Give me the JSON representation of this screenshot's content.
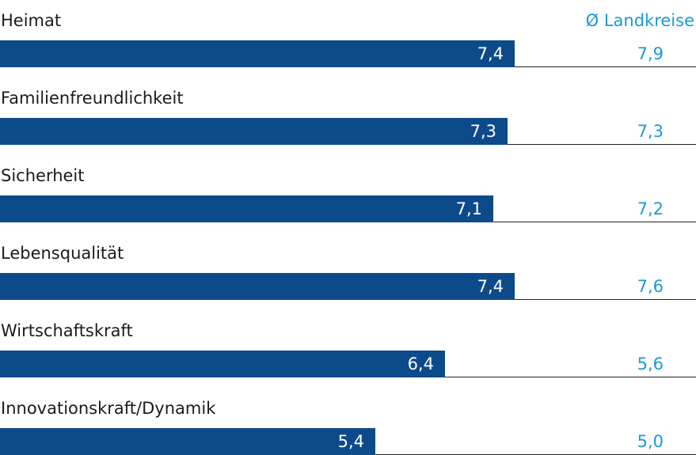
{
  "chart_data": {
    "type": "bar",
    "orientation": "horizontal",
    "categories": [
      "Heimat",
      "Familienfreundlichkeit",
      "Sicherheit",
      "Lebensqualität",
      "Wirtschaftskraft",
      "Innovationskraft/Dynamik"
    ],
    "series": [
      {
        "values": [
          7.4,
          7.3,
          7.1,
          7.4,
          6.4,
          5.4
        ]
      },
      {
        "name": "Ø Landkreise",
        "values": [
          7.9,
          7.3,
          7.2,
          7.6,
          5.6,
          5.0
        ]
      }
    ],
    "value_labels": [
      "7,4",
      "7,3",
      "7,1",
      "7,4",
      "6,4",
      "5,4"
    ],
    "avg_labels": [
      "7,9",
      "7,3",
      "7,2",
      "7,6",
      "5,6",
      "5,0"
    ],
    "legend": "Ø Landkreise",
    "xlim": [
      0,
      10
    ],
    "grid": false,
    "colors": {
      "bar": "#0d4a8a",
      "average": "#1a9ad6",
      "label": "#1b1b1b"
    }
  }
}
